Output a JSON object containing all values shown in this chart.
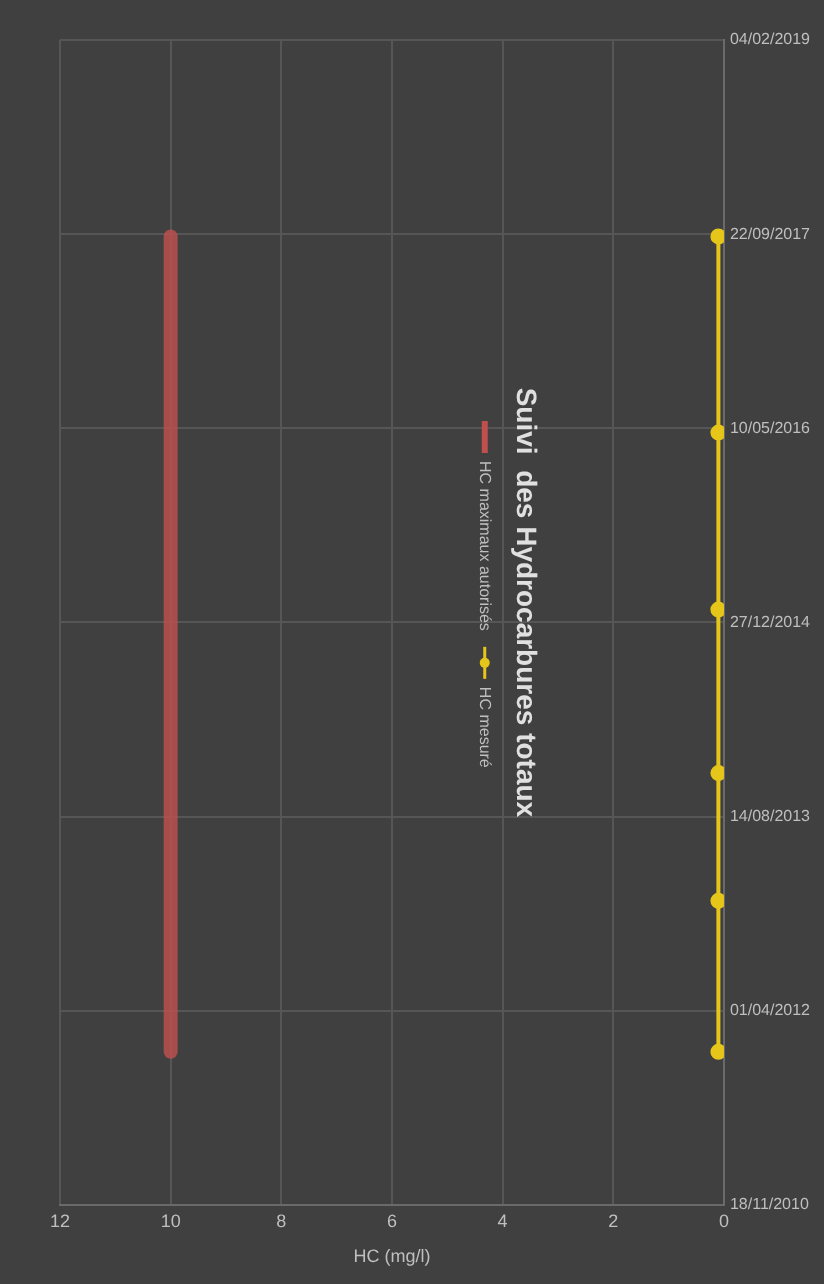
{
  "chart_data": {
    "type": "line",
    "orientation": "horizontal",
    "title": "Suivi  des Hydrocarbures totaux",
    "xlabel": "HC (mg/l)",
    "x": [
      "2011-12-17",
      "2013-01-09",
      "2013-12-04",
      "2015-01-29",
      "2016-04-29",
      "2017-09-16"
    ],
    "series": [
      {
        "name": "HC maximaux autorisés",
        "color": "#c0504d",
        "marker": "none",
        "values": [
          10,
          10,
          10,
          10,
          10,
          10
        ]
      },
      {
        "name": "HC mesuré",
        "color": "#e6c619",
        "marker": "circle",
        "values": [
          0.1,
          0.1,
          0.1,
          0.1,
          0.1,
          0.1
        ]
      }
    ],
    "xlim": [
      12,
      0
    ],
    "xticks": [
      12,
      10,
      8,
      6,
      4,
      2,
      0
    ],
    "ylim": [
      "2010-11-18",
      "2019-02-04"
    ],
    "yticks": [
      {
        "value": "2010-11-18",
        "label": "18/11/2010"
      },
      {
        "value": "2012-04-01",
        "label": "01/04/2012"
      },
      {
        "value": "2013-08-14",
        "label": "14/08/2013"
      },
      {
        "value": "2014-12-27",
        "label": "27/12/2014"
      },
      {
        "value": "2016-05-10",
        "label": "10/05/2016"
      },
      {
        "value": "2017-09-22",
        "label": "22/09/2017"
      },
      {
        "value": "2019-02-04",
        "label": "04/02/2019"
      }
    ],
    "grid": true,
    "legend": "center",
    "line_style": "solid"
  }
}
